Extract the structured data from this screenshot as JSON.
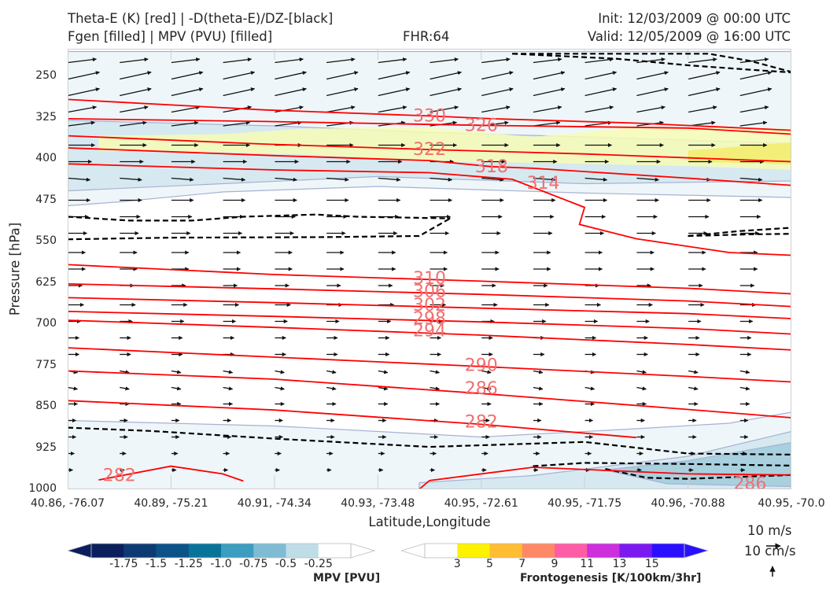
{
  "header": {
    "title_line1": "Theta-E (K) [red] | -D(theta-E)/DZ-[black]",
    "title_line2": "Fgen [filled] | MPV (PVU) [filled]",
    "fhr": "FHR:64",
    "init": "Init: 12/03/2009 @ 00:00 UTC",
    "valid": "Valid: 12/05/2009 @ 16:00 UTC"
  },
  "axes": {
    "ylabel": "Pressure [hPa]",
    "xlabel": "Latitude,Longitude"
  },
  "legend": {
    "vector_scale_h": "10 m/s",
    "vector_scale_v": "10 cm/s"
  },
  "colorbars": {
    "mpv": {
      "title": "MPV [PVU]",
      "labels": [
        "-1.75",
        "-1.5",
        "-1.25",
        "-1.0",
        "-0.75",
        "-0.5",
        "-0.25"
      ],
      "colors": [
        "#0a1f5c",
        "#0e3a73",
        "#0b5288",
        "#0a7399",
        "#3b9dbf",
        "#7fbcd4",
        "#bfdde6",
        "#ffffff"
      ]
    },
    "fgen": {
      "title": "Frontogenesis [K/100km/3hr]",
      "labels": [
        "3",
        "5",
        "7",
        "9",
        "11",
        "13",
        "15"
      ],
      "colors": [
        "#ffffff",
        "#fff200",
        "#ffbd33",
        "#ff8966",
        "#ff5ca6",
        "#cc2fdb",
        "#7a1af0",
        "#2b10ff"
      ]
    }
  },
  "chart_data": {
    "type": "contour",
    "y_ticks": [
      "250",
      "325",
      "400",
      "475",
      "550",
      "625",
      "700",
      "775",
      "850",
      "925",
      "1000"
    ],
    "x_ticks": [
      "40.86, -76.07",
      "40.89, -75.21",
      "40.91, -74.34",
      "40.93, -73.48",
      "40.95, -72.61",
      "40.95, -71.75",
      "40.96, -70.88",
      "40.95, -70.0"
    ],
    "ylim": [
      1000,
      200
    ],
    "y_scale": "linear",
    "theta_e_lines": [
      {
        "level": "330",
        "points": [
          [
            0,
            292
          ],
          [
            1.9,
            311
          ],
          [
            3.5,
            322
          ],
          [
            4.1,
            327
          ],
          [
            5.5,
            335
          ],
          [
            7,
            348
          ]
        ]
      },
      {
        "level": "326",
        "points": [
          [
            0,
            327
          ],
          [
            1.9,
            332
          ],
          [
            4,
            339
          ],
          [
            6,
            344
          ],
          [
            7,
            355
          ]
        ]
      },
      {
        "level": "322",
        "points": [
          [
            0,
            358
          ],
          [
            1.9,
            373
          ],
          [
            3.5,
            383
          ],
          [
            5,
            391
          ],
          [
            7,
            405
          ]
        ]
      },
      {
        "level": "318",
        "points": [
          [
            0,
            380
          ],
          [
            2,
            394
          ],
          [
            3.5,
            403
          ],
          [
            4.1,
            414
          ],
          [
            4.5,
            417
          ],
          [
            6,
            435
          ],
          [
            7,
            448
          ]
        ]
      },
      {
        "level": "314",
        "points": [
          [
            0,
            409
          ],
          [
            2,
            420
          ],
          [
            3.5,
            425
          ],
          [
            4.3,
            437
          ],
          [
            5,
            488
          ],
          [
            4.95,
            519
          ],
          [
            5.5,
            545
          ],
          [
            6.4,
            570
          ],
          [
            7,
            575
          ]
        ]
      },
      {
        "level": "310",
        "points": [
          [
            0,
            592
          ],
          [
            2,
            610
          ],
          [
            4,
            622
          ],
          [
            6,
            635
          ],
          [
            7,
            645
          ]
        ]
      },
      {
        "level": "306",
        "points": [
          [
            0,
            627
          ],
          [
            2,
            636
          ],
          [
            4,
            646
          ],
          [
            6,
            658
          ],
          [
            7,
            668
          ]
        ]
      },
      {
        "level": "302",
        "points": [
          [
            0,
            652
          ],
          [
            2,
            661
          ],
          [
            4,
            671
          ],
          [
            6,
            681
          ],
          [
            7,
            690
          ]
        ]
      },
      {
        "level": "298",
        "points": [
          [
            0,
            677
          ],
          [
            2,
            686
          ],
          [
            4,
            696
          ],
          [
            6,
            708
          ],
          [
            7,
            718
          ]
        ]
      },
      {
        "level": "294",
        "points": [
          [
            0,
            693
          ],
          [
            2,
            706
          ],
          [
            4,
            720
          ],
          [
            6,
            737
          ],
          [
            7,
            747
          ]
        ]
      },
      {
        "level": "290",
        "points": [
          [
            0,
            743
          ],
          [
            2,
            760
          ],
          [
            4,
            777
          ],
          [
            6,
            795
          ],
          [
            7,
            805
          ]
        ]
      },
      {
        "level": "286",
        "points": [
          [
            0,
            785
          ],
          [
            2,
            800
          ],
          [
            4,
            826
          ],
          [
            6,
            855
          ],
          [
            7,
            870
          ]
        ]
      },
      {
        "level": "282",
        "points": [
          [
            0,
            839
          ],
          [
            2,
            856
          ],
          [
            4,
            882
          ],
          [
            5.5,
            906
          ]
        ]
      },
      {
        "level": "282",
        "points": [
          [
            0.3,
            983
          ],
          [
            1,
            958
          ],
          [
            1.5,
            972
          ],
          [
            1.7,
            985
          ]
        ]
      },
      {
        "level": "286",
        "points": [
          [
            3.4,
            1000
          ],
          [
            3.5,
            984
          ],
          [
            4.5,
            960
          ],
          [
            6,
            972
          ],
          [
            7,
            974
          ]
        ]
      }
    ],
    "theta_e_labels": [
      {
        "text": "330",
        "x": 3.5,
        "p": 322
      },
      {
        "text": "326",
        "x": 4.0,
        "p": 339
      },
      {
        "text": "322",
        "x": 3.5,
        "p": 383
      },
      {
        "text": "318",
        "x": 4.1,
        "p": 414
      },
      {
        "text": "314",
        "x": 4.6,
        "p": 444
      },
      {
        "text": "310",
        "x": 3.5,
        "p": 617
      },
      {
        "text": "306",
        "x": 3.5,
        "p": 641
      },
      {
        "text": "302",
        "x": 3.5,
        "p": 666
      },
      {
        "text": "298",
        "x": 3.5,
        "p": 690
      },
      {
        "text": "294",
        "x": 3.5,
        "p": 712
      },
      {
        "text": "290",
        "x": 4.0,
        "p": 775
      },
      {
        "text": "286",
        "x": 4.0,
        "p": 817
      },
      {
        "text": "282",
        "x": 4.0,
        "p": 878
      },
      {
        "text": "282",
        "x": 0.5,
        "p": 975
      },
      {
        "text": "286",
        "x": 6.6,
        "p": 990
      }
    ],
    "dthetae_dz_lines": [
      {
        "points": [
          [
            4.3,
            209
          ],
          [
            5.3,
            209
          ],
          [
            6.2,
            209
          ],
          [
            6.6,
            222
          ],
          [
            7,
            242
          ]
        ]
      },
      {
        "points": [
          [
            4.3,
            209
          ],
          [
            5.3,
            218
          ],
          [
            6.0,
            230
          ],
          [
            6.6,
            238
          ],
          [
            7,
            243
          ]
        ]
      },
      {
        "points": [
          [
            0,
            505
          ],
          [
            0.6,
            512
          ],
          [
            1.2,
            512
          ],
          [
            1.7,
            505
          ],
          [
            2.4,
            501
          ],
          [
            2.8,
            505
          ],
          [
            3.7,
            508
          ]
        ]
      },
      {
        "points": [
          [
            0,
            546
          ],
          [
            1,
            543
          ],
          [
            2.5,
            542
          ],
          [
            3.4,
            540
          ],
          [
            3.7,
            508
          ]
        ]
      },
      {
        "points": [
          [
            6.0,
            540
          ],
          [
            6.5,
            531
          ],
          [
            7,
            525
          ]
        ]
      },
      {
        "points": [
          [
            6.0,
            540
          ],
          [
            6.6,
            537
          ],
          [
            7,
            536
          ]
        ]
      },
      {
        "points": [
          [
            0,
            888
          ],
          [
            0.8,
            894
          ],
          [
            2,
            908
          ],
          [
            3.5,
            923
          ],
          [
            5,
            914
          ],
          [
            6,
            935
          ],
          [
            7,
            937
          ]
        ]
      },
      {
        "points": [
          [
            4.5,
            958
          ],
          [
            5,
            952
          ],
          [
            6,
            954
          ],
          [
            7,
            957
          ]
        ]
      },
      {
        "points": [
          [
            5.2,
            963
          ],
          [
            5.6,
            979
          ],
          [
            6,
            981
          ],
          [
            7,
            974
          ]
        ]
      }
    ],
    "mpv_regions": [
      {
        "level": "-0.25",
        "color": "#eef6f9",
        "points": [
          [
            0,
            205
          ],
          [
            7,
            205
          ],
          [
            7,
            470
          ],
          [
            5,
            462
          ],
          [
            3,
            450
          ],
          [
            1.5,
            460
          ],
          [
            0.5,
            478
          ],
          [
            0,
            485
          ]
        ]
      },
      {
        "level": "-0.5",
        "color": "#d6e9f0",
        "points": [
          [
            0,
            330
          ],
          [
            2,
            340
          ],
          [
            3.5,
            352
          ],
          [
            5,
            360
          ],
          [
            7,
            372
          ],
          [
            7,
            440
          ],
          [
            5,
            445
          ],
          [
            3,
            432
          ],
          [
            1.5,
            445
          ],
          [
            0,
            458
          ]
        ]
      },
      {
        "level": "-0.25",
        "color": "#eef6f9",
        "points": [
          [
            0,
            875
          ],
          [
            2,
            885
          ],
          [
            4,
            905
          ],
          [
            5.5,
            890
          ],
          [
            6.4,
            880
          ],
          [
            7,
            860
          ],
          [
            7,
            1000
          ],
          [
            0,
            1000
          ]
        ]
      },
      {
        "level": "-0.5",
        "color": "#d6e9f0",
        "points": [
          [
            3.4,
            988
          ],
          [
            4.5,
            975
          ],
          [
            6,
            940
          ],
          [
            7,
            895
          ],
          [
            7,
            1000
          ],
          [
            3.4,
            1000
          ]
        ]
      },
      {
        "level": "-0.75",
        "color": "#a8d0de",
        "points": [
          [
            5.2,
            965
          ],
          [
            6,
            948
          ],
          [
            7,
            915
          ],
          [
            7,
            995
          ],
          [
            5.8,
            990
          ]
        ]
      }
    ],
    "fgen_regions": [
      {
        "level": "3",
        "color": "#f7fbb6",
        "points": [
          [
            0.3,
            358
          ],
          [
            1.5,
            355
          ],
          [
            2.3,
            345
          ],
          [
            3.5,
            343
          ],
          [
            4.5,
            360
          ],
          [
            5.5,
            342
          ],
          [
            7,
            345
          ],
          [
            7,
            420
          ],
          [
            6,
            413
          ],
          [
            4.5,
            407
          ],
          [
            3.5,
            405
          ],
          [
            2.3,
            392
          ],
          [
            1.5,
            388
          ],
          [
            0.3,
            385
          ]
        ]
      },
      {
        "level": "5",
        "color": "#f2ec6a",
        "points": [
          [
            6.0,
            385
          ],
          [
            7,
            370
          ],
          [
            7,
            410
          ],
          [
            6.0,
            405
          ]
        ]
      }
    ],
    "vectors": {
      "columns": [
        0,
        0.5,
        1,
        1.5,
        2,
        2.5,
        3,
        3.5,
        4,
        4.5,
        5,
        5.5,
        6,
        6.5,
        7
      ],
      "levels": [
        225,
        255,
        285,
        315,
        340,
        375,
        405,
        435,
        475,
        505,
        535,
        570,
        600,
        630,
        665,
        695,
        725,
        755,
        785,
        815,
        845,
        875,
        905,
        935,
        965
      ],
      "u": [
        18,
        20,
        20,
        18,
        17,
        17,
        15,
        14,
        14,
        13,
        12,
        11,
        11,
        9,
        10,
        8,
        7,
        7,
        6,
        6,
        6,
        5,
        5,
        4,
        3
      ],
      "w": [
        2,
        4,
        4,
        3,
        2,
        0,
        0,
        -1,
        0,
        0,
        0,
        0,
        0,
        0,
        0,
        0,
        0,
        0,
        -1,
        -1,
        0,
        0,
        0,
        0,
        0
      ]
    }
  }
}
